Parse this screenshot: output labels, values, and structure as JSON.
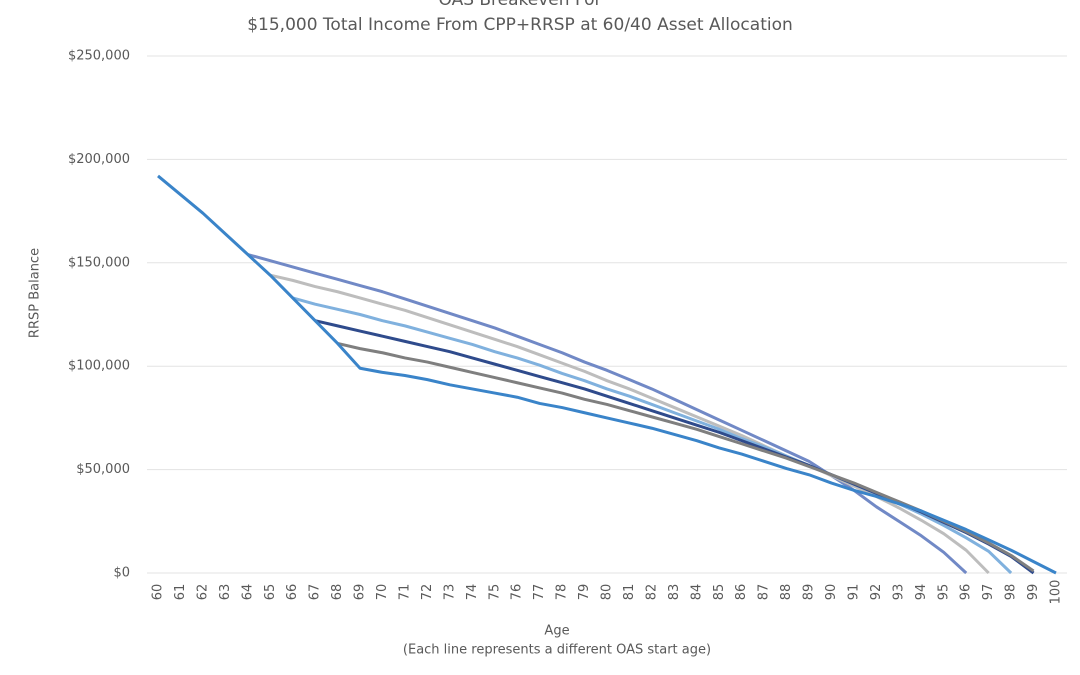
{
  "chart_data": {
    "type": "line",
    "title": "OAS Breakeven For",
    "subtitle": "$15,000 Total Income From CPP+RRSP at 60/40 Asset Allocation",
    "x_label": "Age",
    "x_label_note": "(Each line represents a different OAS start age)",
    "y_label": "RRSP Balance",
    "categories": [
      60,
      61,
      62,
      63,
      64,
      65,
      66,
      67,
      68,
      69,
      70,
      71,
      72,
      73,
      74,
      75,
      76,
      77,
      78,
      79,
      80,
      81,
      82,
      83,
      84,
      85,
      86,
      87,
      88,
      89,
      90,
      91,
      92,
      93,
      94,
      95,
      96,
      97,
      98,
      99,
      100
    ],
    "ylim": [
      0,
      250000
    ],
    "yticks": [
      {
        "value": 0,
        "label": "$0"
      },
      {
        "value": 50000,
        "label": "$50,000"
      },
      {
        "value": 100000,
        "label": "$100,000"
      },
      {
        "value": 150000,
        "label": "$150,000"
      },
      {
        "value": 200000,
        "label": "$200,000"
      },
      {
        "value": 250000,
        "label": "$250,000"
      }
    ],
    "grid": true,
    "series": [
      {
        "color": "#7189c6",
        "values": [
          null,
          null,
          null,
          null,
          154000,
          151000,
          148000,
          145000,
          142000,
          139000,
          136000,
          132500,
          129000,
          125500,
          122000,
          118500,
          114500,
          110500,
          106500,
          102000,
          98000,
          93500,
          89000,
          84000,
          79000,
          74000,
          69000,
          64000,
          59000,
          54000,
          47000,
          40000,
          32000,
          25000,
          18000,
          10000,
          0,
          null,
          null,
          null,
          null
        ]
      },
      {
        "color": "#bdbdbd",
        "values": [
          null,
          null,
          null,
          null,
          null,
          144000,
          141500,
          138500,
          136000,
          133000,
          130000,
          127000,
          123500,
          120000,
          116500,
          113000,
          109500,
          105500,
          101500,
          97500,
          93000,
          89000,
          84500,
          80000,
          75500,
          71000,
          66500,
          61500,
          56500,
          52000,
          47000,
          42000,
          37000,
          31500,
          25500,
          19000,
          11000,
          0,
          null,
          null,
          null
        ]
      },
      {
        "color": "#80b1de",
        "values": [
          null,
          null,
          null,
          null,
          null,
          null,
          133000,
          130000,
          127500,
          125000,
          122000,
          119500,
          116500,
          113500,
          110500,
          107000,
          104000,
          100500,
          96500,
          93000,
          89000,
          85500,
          81500,
          77500,
          73500,
          69500,
          65000,
          61000,
          56500,
          52000,
          47500,
          43000,
          38500,
          33500,
          28500,
          23000,
          17000,
          10500,
          0,
          null,
          null
        ]
      },
      {
        "color": "#2f4b8c",
        "values": [
          null,
          null,
          null,
          null,
          null,
          null,
          null,
          122000,
          119500,
          117000,
          114500,
          112000,
          109500,
          107000,
          104000,
          101000,
          98000,
          95000,
          92000,
          89000,
          85500,
          82000,
          78500,
          75000,
          71500,
          68000,
          64000,
          60000,
          56000,
          52000,
          47500,
          43000,
          38500,
          34000,
          29500,
          24500,
          19500,
          14000,
          8000,
          0,
          null
        ]
      },
      {
        "color": "#7f7f7f",
        "values": [
          null,
          null,
          null,
          null,
          null,
          null,
          null,
          null,
          111000,
          108500,
          106500,
          104000,
          102000,
          99500,
          97000,
          94500,
          92000,
          89500,
          87000,
          84000,
          81500,
          78500,
          75500,
          72500,
          69500,
          66000,
          62500,
          59000,
          55500,
          51500,
          47500,
          43500,
          39000,
          34500,
          30000,
          25000,
          20000,
          14500,
          8500,
          1000,
          null
        ]
      },
      {
        "color": "#3a84c9",
        "values": [
          192000,
          183000,
          174000,
          164000,
          154000,
          144000,
          133000,
          122000,
          111000,
          99000,
          97000,
          95500,
          93500,
          91000,
          89000,
          87000,
          85000,
          82000,
          80000,
          77500,
          75000,
          72500,
          70000,
          67000,
          64000,
          60500,
          57500,
          54000,
          50500,
          47500,
          43500,
          40000,
          37000,
          33500,
          30000,
          25500,
          21000,
          16000,
          11000,
          5500,
          0
        ]
      }
    ]
  }
}
